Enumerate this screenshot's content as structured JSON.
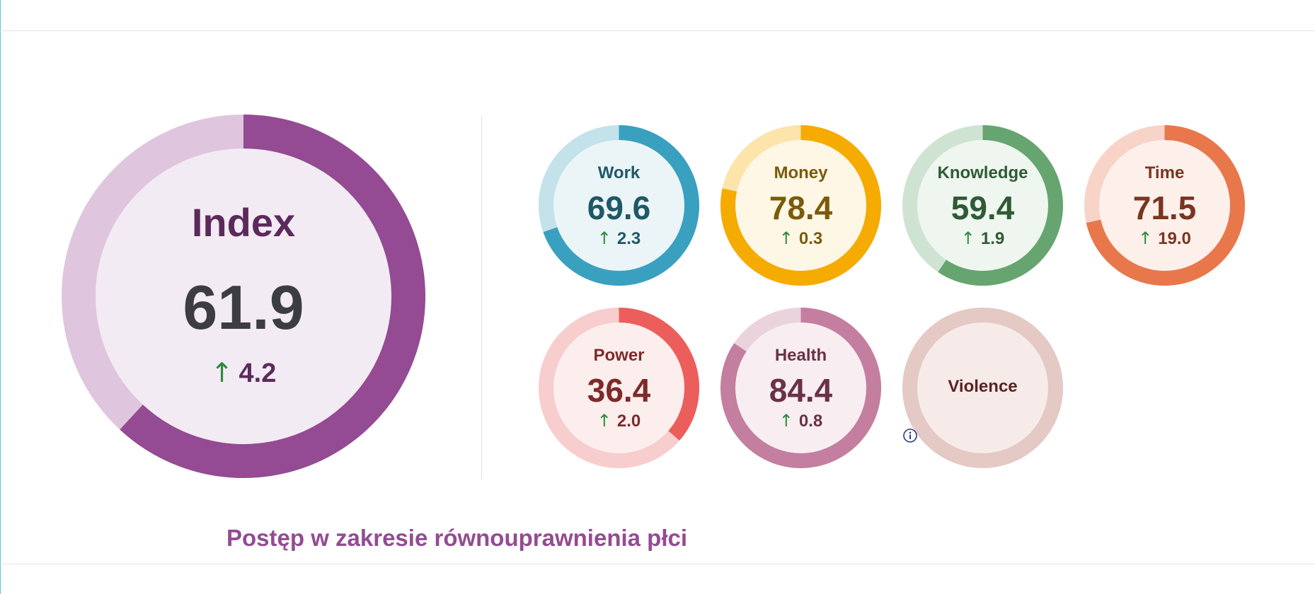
{
  "main_index": {
    "label": "Index",
    "value": "61.9",
    "delta": "4.2",
    "fraction": 0.619,
    "colors": {
      "ring": "#944b93",
      "track": "#dfc5de",
      "fill": "#f3ebf3",
      "label": "#5b2a5a",
      "value": "#3c3d43"
    }
  },
  "domains": [
    {
      "id": "work",
      "label": "Work",
      "value": "69.6",
      "delta": "2.3",
      "fraction": 0.696,
      "colors": {
        "ring": "#3aa0bf",
        "track": "#c3e2ea",
        "fill": "#ebf5f7",
        "text": "#1f5867"
      }
    },
    {
      "id": "money",
      "label": "Money",
      "value": "78.4",
      "delta": "0.3",
      "fraction": 0.784,
      "colors": {
        "ring": "#f5ab00",
        "track": "#fde4ab",
        "fill": "#fff7e6",
        "text": "#7a5b0b"
      }
    },
    {
      "id": "knowledge",
      "label": "Knowledge",
      "value": "59.4",
      "delta": "1.9",
      "fraction": 0.594,
      "colors": {
        "ring": "#66a56f",
        "track": "#cfe3d3",
        "fill": "#eef6ef",
        "text": "#2f5a35"
      }
    },
    {
      "id": "time",
      "label": "Time",
      "value": "71.5",
      "delta": "19.0",
      "fraction": 0.715,
      "colors": {
        "ring": "#e9774c",
        "track": "#f8d4c8",
        "fill": "#fdf0eb",
        "text": "#7a3520"
      }
    },
    {
      "id": "power",
      "label": "Power",
      "value": "36.4",
      "delta": "2.0",
      "fraction": 0.364,
      "colors": {
        "ring": "#eb5e5c",
        "track": "#f8cdcd",
        "fill": "#fdeeee",
        "text": "#7f2a2a"
      }
    },
    {
      "id": "health",
      "label": "Health",
      "value": "84.4",
      "delta": "0.8",
      "fraction": 0.844,
      "colors": {
        "ring": "#c47e9f",
        "track": "#ebd3de",
        "fill": "#f8eef2",
        "text": "#6a3148"
      }
    },
    {
      "id": "violence",
      "label": "Violence",
      "value": "",
      "delta": "",
      "fraction": 0,
      "info_icon": "info-icon",
      "colors": {
        "ring": "#e4c9c5",
        "track": "#e4c9c5",
        "fill": "#f6ebe9",
        "text": "#5a2222"
      }
    }
  ],
  "trend_color": "#2f8a3c",
  "info_icon_color": "#2b3a8c",
  "footer": {
    "title": "Postęp w zakresie równouprawnienia płci"
  }
}
